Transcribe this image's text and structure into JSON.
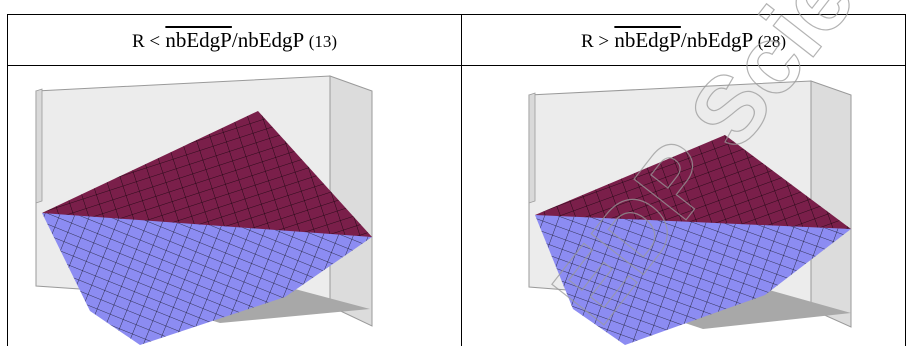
{
  "header_left": {
    "prefix": "R <",
    "over": "nbEdgP",
    "suffix": "/nbEdgP",
    "count": "(13)"
  },
  "header_right": {
    "prefix": "R >",
    "over": "nbEdgP",
    "suffix": "/nbEdgP",
    "count": "(28)"
  },
  "colors": {
    "upper_surface": "#7a1f4a",
    "lower_surface": "#8c8cf2",
    "box_wall": "#e6e6e6",
    "floor": "#a8a8a8"
  },
  "watermark_text": "EDP Sciences"
}
